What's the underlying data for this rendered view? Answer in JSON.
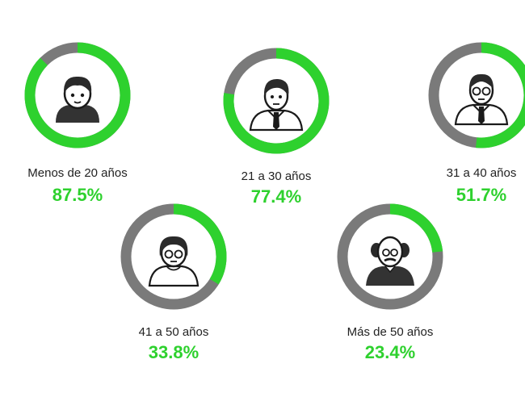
{
  "colors": {
    "accent": "#2ed12e",
    "remainder": "#7a7a7a",
    "icon_outline": "#1a1a1a",
    "icon_hair": "#2a2a2a",
    "icon_shirt": "#333333",
    "label_text": "#222222"
  },
  "chart_data": {
    "type": "pie",
    "variant": "donut-per-category",
    "categories": [
      "Menos de 20 años",
      "21 a 30 años",
      "31 a 40 años",
      "41 a 50 años",
      "Más de 50 años"
    ],
    "values": [
      87.5,
      77.4,
      51.7,
      33.8,
      23.4
    ],
    "value_labels": [
      "87.5%",
      "77.4%",
      "51.7%",
      "33.8%",
      "23.4%"
    ],
    "icons": [
      "boy-icon",
      "young-man-icon",
      "man-with-glasses-icon",
      "middle-aged-woman-icon",
      "old-man-icon"
    ],
    "unit": "%"
  }
}
